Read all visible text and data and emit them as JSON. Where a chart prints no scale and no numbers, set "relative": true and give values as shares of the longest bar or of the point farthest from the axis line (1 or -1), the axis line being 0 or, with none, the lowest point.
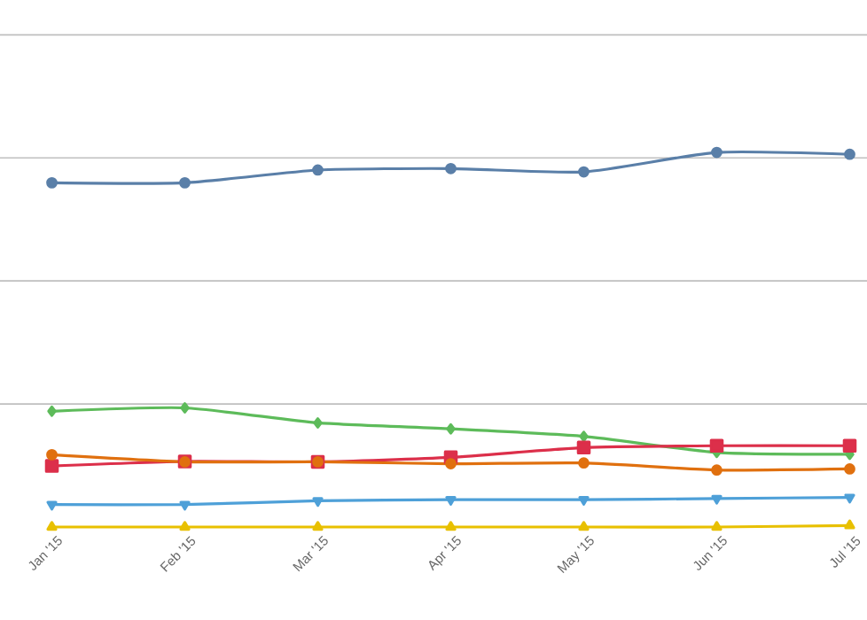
{
  "chart_data": {
    "type": "line",
    "relative": true,
    "grid": "y",
    "categories": [
      "Jan '15",
      "Feb '15",
      "Mar '15",
      "Apr '15",
      "May '15",
      "Jun '15",
      "Jul '15"
    ],
    "series": [
      {
        "color": "#5a7fa8",
        "marker": "circle",
        "values": [
          0.919,
          0.919,
          0.953,
          0.957,
          0.948,
          1,
          0.995
        ]
      },
      {
        "color": "#5dbb5a",
        "marker": "diamond",
        "values": [
          0.309,
          0.318,
          0.278,
          0.262,
          0.242,
          0.199,
          0.194
        ]
      },
      {
        "color": "#dc2f4a",
        "marker": "square",
        "values": [
          0.163,
          0.175,
          0.174,
          0.186,
          0.212,
          0.217,
          0.217
        ]
      },
      {
        "color": "#e0700f",
        "marker": "circle",
        "values": [
          0.193,
          0.174,
          0.174,
          0.169,
          0.171,
          0.152,
          0.155
        ]
      },
      {
        "color": "#4ea0d8",
        "marker": "triangle down",
        "values": [
          0.06,
          0.06,
          0.07,
          0.073,
          0.073,
          0.076,
          0.079
        ]
      },
      {
        "color": "#e8c000",
        "marker": "triangle",
        "values": [
          0,
          0,
          0,
          0,
          0,
          0,
          0.004
        ]
      }
    ]
  }
}
